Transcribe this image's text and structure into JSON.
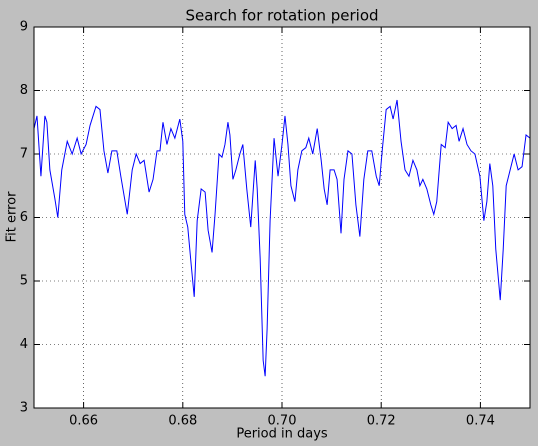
{
  "chart_data": {
    "type": "line",
    "title": "Search for rotation period",
    "xlabel": "Period in days",
    "ylabel": "Fit error",
    "xlim": [
      0.65,
      0.75
    ],
    "ylim": [
      3,
      9
    ],
    "xticks": [
      0.66,
      0.68,
      {
        "value": 0.7,
        "label": "0.70"
      },
      0.72,
      0.74
    ],
    "yticks": [
      3,
      4,
      5,
      6,
      7,
      8,
      9
    ],
    "grid": true,
    "series": [
      {
        "color": "#0000ff",
        "x": [
          0.65,
          0.6506,
          0.6514,
          0.6522,
          0.6526,
          0.6532,
          0.6542,
          0.6548,
          0.6556,
          0.6567,
          0.6577,
          0.6587,
          0.6595,
          0.6605,
          0.6613,
          0.6625,
          0.6633,
          0.6641,
          0.6649,
          0.6657,
          0.6667,
          0.6675,
          0.6688,
          0.6698,
          0.6706,
          0.6714,
          0.6722,
          0.6732,
          0.674,
          0.6748,
          0.6754,
          0.676,
          0.6768,
          0.6776,
          0.6784,
          0.6794,
          0.68,
          0.6804,
          0.681,
          0.6817,
          0.6823,
          0.6829,
          0.6837,
          0.6845,
          0.6851,
          0.6859,
          0.6865,
          0.6873,
          0.6879,
          0.6885,
          0.6891,
          0.6895,
          0.6901,
          0.6907,
          0.6915,
          0.6921,
          0.6929,
          0.6937,
          0.6946,
          0.695,
          0.6956,
          0.6962,
          0.6966,
          0.697,
          0.6976,
          0.6984,
          0.6992,
          0.7,
          0.7006,
          0.7012,
          0.7018,
          0.7026,
          0.7032,
          0.704,
          0.7048,
          0.7054,
          0.7062,
          0.7071,
          0.7079,
          0.7085,
          0.7091,
          0.7097,
          0.7105,
          0.7111,
          0.7119,
          0.7125,
          0.7133,
          0.7141,
          0.7149,
          0.7157,
          0.7165,
          0.7173,
          0.7181,
          0.719,
          0.7196,
          0.7202,
          0.721,
          0.7218,
          0.7224,
          0.7232,
          0.724,
          0.7248,
          0.7256,
          0.7264,
          0.7272,
          0.7278,
          0.7284,
          0.7292,
          0.73,
          0.7306,
          0.7312,
          0.7321,
          0.7329,
          0.7335,
          0.7343,
          0.7351,
          0.7357,
          0.7365,
          0.7373,
          0.7381,
          0.7389,
          0.7399,
          0.7407,
          0.7413,
          0.7419,
          0.7425,
          0.7431,
          0.744,
          0.7446,
          0.7452,
          0.746,
          0.7468,
          0.7476,
          0.7484,
          0.7492,
          0.75
        ],
        "values": [
          7.4,
          7.6,
          6.65,
          7.6,
          7.5,
          6.75,
          6.3,
          6.0,
          6.75,
          7.2,
          7.0,
          7.25,
          7.0,
          7.15,
          7.45,
          7.75,
          7.7,
          7.05,
          6.7,
          7.05,
          7.05,
          6.65,
          6.05,
          6.75,
          7.0,
          6.85,
          6.9,
          6.4,
          6.6,
          7.05,
          7.05,
          7.5,
          7.15,
          7.4,
          7.25,
          7.55,
          7.2,
          6.05,
          5.85,
          5.25,
          4.75,
          5.95,
          6.45,
          6.4,
          5.8,
          5.45,
          6.05,
          7.0,
          6.95,
          7.15,
          7.5,
          7.3,
          6.6,
          6.75,
          7.0,
          7.15,
          6.45,
          5.85,
          6.9,
          6.45,
          5.35,
          3.75,
          3.5,
          4.25,
          5.95,
          7.25,
          6.65,
          7.15,
          7.6,
          7.15,
          6.5,
          6.25,
          6.75,
          7.05,
          7.1,
          7.25,
          7.0,
          7.4,
          6.9,
          6.45,
          6.2,
          6.75,
          6.75,
          6.6,
          5.75,
          6.6,
          7.05,
          7.0,
          6.2,
          5.7,
          6.6,
          7.05,
          7.05,
          6.65,
          6.5,
          7.05,
          7.7,
          7.75,
          7.55,
          7.85,
          7.2,
          6.75,
          6.65,
          6.9,
          6.75,
          6.5,
          6.6,
          6.45,
          6.2,
          6.05,
          6.25,
          7.15,
          7.1,
          7.5,
          7.4,
          7.45,
          7.2,
          7.4,
          7.15,
          7.05,
          7.0,
          6.65,
          5.95,
          6.25,
          6.85,
          6.5,
          5.5,
          4.7,
          5.5,
          6.5,
          6.75,
          7.0,
          6.75,
          6.8,
          7.3,
          7.25
        ]
      }
    ]
  }
}
